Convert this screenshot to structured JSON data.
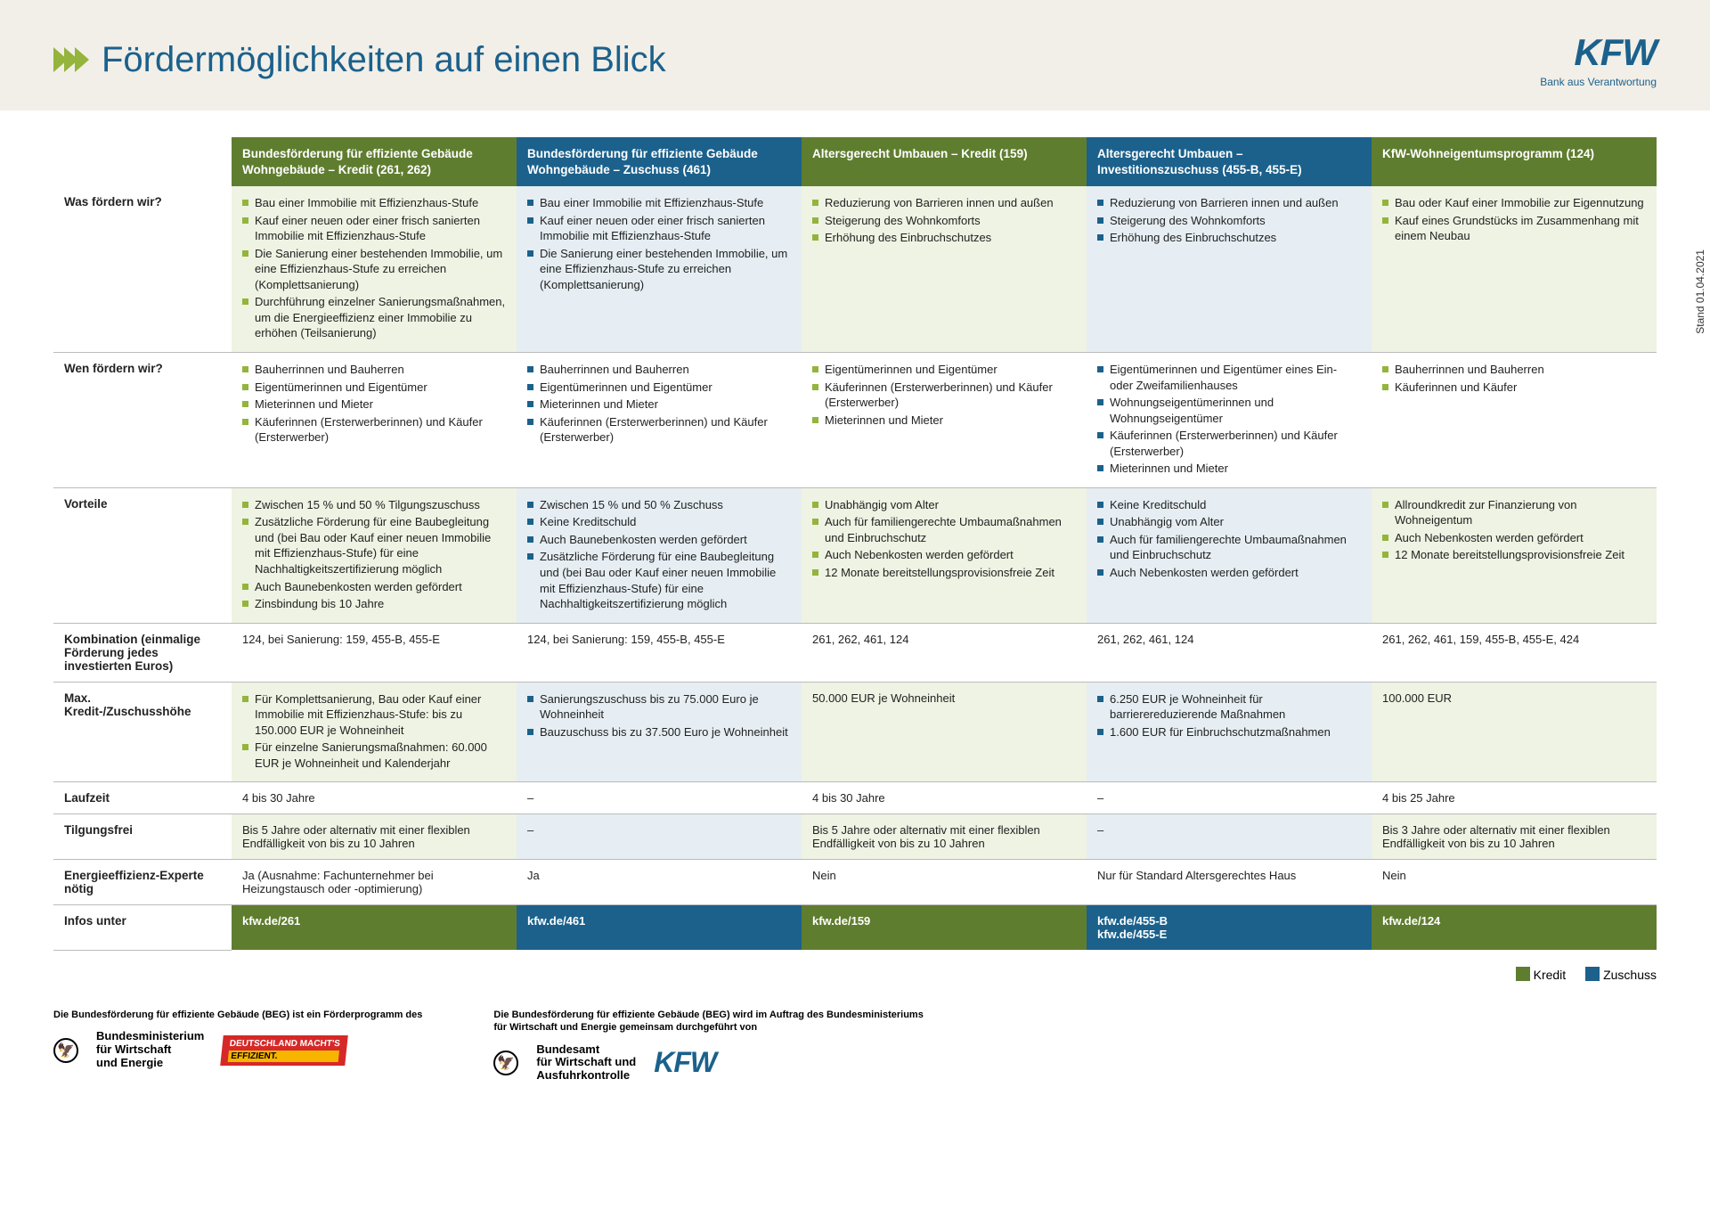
{
  "header": {
    "title": "Fördermöglichkeiten auf einen Blick",
    "logo": "KFW",
    "logo_sub": "Bank aus Verantwortung",
    "stand": "Stand 01.04.2021"
  },
  "columns": [
    {
      "title": "Bundesförderung für effiziente Gebäude Wohngebäude – Kredit (261, 262)",
      "type": "green"
    },
    {
      "title": "Bundesförderung für effiziente Gebäude Wohngebäude – Zuschuss (461)",
      "type": "blue"
    },
    {
      "title": "Altersgerecht Umbauen – Kredit (159)",
      "type": "green"
    },
    {
      "title": "Altersgerecht Umbauen – Investitionszuschuss (455-B, 455-E)",
      "type": "blue"
    },
    {
      "title": "KfW-Wohneigentumsprogramm (124)",
      "type": "green"
    }
  ],
  "rows": [
    {
      "label": "Was fördern wir?",
      "tint": "A",
      "cells": [
        [
          "Bau einer Immobilie mit Effizienzhaus-Stufe",
          "Kauf einer neuen oder einer frisch sanierten Immobilie mit Effizienzhaus-Stufe",
          "Die Sanierung einer bestehenden Immobilie, um eine Effizienzhaus-Stufe zu erreichen (Komplettsanierung)",
          "Durchführung einzelner Sanierungsmaßnahmen, um die Energieeffizienz einer Immobilie zu erhöhen (Teilsanierung)"
        ],
        [
          "Bau einer Immobilie mit Effizienzhaus-Stufe",
          "Kauf einer neuen oder einer frisch sanierten Immobilie mit Effizienzhaus-Stufe",
          "Die Sanierung einer bestehenden Immobilie, um eine Effizienzhaus-Stufe zu erreichen (Komplettsanierung)"
        ],
        [
          "Reduzierung von Barrieren innen und außen",
          "Steigerung des Wohnkomforts",
          "Erhöhung des Einbruchschutzes"
        ],
        [
          "Reduzierung von Barrieren innen und außen",
          "Steigerung des Wohnkomforts",
          "Erhöhung des Einbruchschutzes"
        ],
        [
          "Bau oder Kauf einer Immobilie zur Eigennutzung",
          "Kauf eines Grundstücks im Zusammenhang mit einem Neubau"
        ]
      ]
    },
    {
      "label": "Wen fördern wir?",
      "tint": "B",
      "cells": [
        [
          "Bauherrinnen und Bauherren",
          "Eigentümerinnen und Eigentümer",
          "Mieterinnen und Mieter",
          "Käuferinnen (Ersterwerberinnen) und Käufer (Ersterwerber)"
        ],
        [
          "Bauherrinnen und Bauherren",
          "Eigentümerinnen und Eigentümer",
          "Mieterinnen und Mieter",
          "Käuferinnen (Ersterwerberinnen) und Käufer (Ersterwerber)"
        ],
        [
          "Eigentümerinnen und Eigentümer",
          "Käuferinnen (Ersterwerberinnen) und Käufer (Ersterwerber)",
          "Mieterinnen und Mieter"
        ],
        [
          "Eigentümerinnen und Eigentümer eines Ein- oder Zweifamilienhauses",
          "Wohnungseigentümerinnen und Wohnungseigentümer",
          "Käuferinnen (Ersterwerberinnen) und Käufer (Ersterwerber)",
          "Mieterinnen und Mieter"
        ],
        [
          "Bauherrinnen und Bauherren",
          "Käuferinnen und Käufer"
        ]
      ]
    },
    {
      "label": "Vorteile",
      "tint": "A",
      "cells": [
        [
          "Zwischen 15 % und 50 % Tilgungszuschuss",
          "Zusätzliche Förderung für eine Baubegleitung und (bei Bau oder Kauf einer neuen Immobilie mit Effizienzhaus-Stufe) für eine Nachhaltigkeitszertifizierung möglich",
          "Auch Baunebenkosten werden gefördert",
          "Zinsbindung bis 10 Jahre"
        ],
        [
          "Zwischen 15 % und 50 % Zuschuss",
          "Keine Kreditschuld",
          "Auch Baunebenkosten werden gefördert",
          "Zusätzliche Förderung für eine Baubegleitung und (bei Bau oder Kauf einer neuen Immobilie mit Effizienzhaus-Stufe) für eine Nachhaltigkeitszertifizierung möglich"
        ],
        [
          "Unabhängig vom Alter",
          "Auch für familiengerechte Umbaumaßnahmen und Einbruchschutz",
          "Auch Nebenkosten werden gefördert",
          "12 Monate bereitstellungsprovisionsfreie Zeit"
        ],
        [
          "Keine Kreditschuld",
          "Unabhängig vom Alter",
          "Auch für familiengerechte Umbaumaßnahmen und Einbruchschutz",
          "Auch Nebenkosten werden gefördert"
        ],
        [
          "Allroundkredit zur Finanzierung von Wohneigentum",
          "Auch Nebenkosten werden gefördert",
          "12 Monate bereitstellungsprovisionsfreie Zeit"
        ]
      ]
    },
    {
      "label": "Kombination (einmalige Förderung jedes investierten Euros)",
      "tint": "B",
      "cells": [
        "124, bei Sanierung: 159, 455-B, 455-E",
        "124, bei Sanierung: 159, 455-B, 455-E",
        "261, 262, 461, 124",
        "261, 262, 461, 124",
        "261, 262, 461, 159, 455-B, 455-E, 424"
      ]
    },
    {
      "label": "Max. Kredit-/Zuschusshöhe",
      "tint": "A",
      "cells": [
        [
          "Für Komplettsanierung, Bau oder Kauf einer Immobilie mit Effizienzhaus-Stufe: bis zu 150.000 EUR je Wohneinheit",
          "Für einzelne Sanierungsmaßnahmen: 60.000 EUR je Wohneinheit und Kalenderjahr"
        ],
        [
          "Sanierungszuschuss bis zu 75.000 Euro je Wohneinheit",
          "Bauzuschuss bis zu 37.500 Euro je Wohneinheit"
        ],
        "50.000 EUR je Wohneinheit",
        [
          "6.250 EUR je Wohneinheit für barrierereduzierende Maßnahmen",
          "1.600 EUR für Einbruchschutzmaßnahmen"
        ],
        "100.000 EUR"
      ]
    },
    {
      "label": "Laufzeit",
      "tint": "B",
      "cells": [
        "4 bis 30 Jahre",
        "–",
        "4 bis 30 Jahre",
        "–",
        "4 bis 25 Jahre"
      ]
    },
    {
      "label": "Tilgungsfrei",
      "tint": "A",
      "cells": [
        "Bis 5 Jahre oder alternativ mit einer flexiblen Endfälligkeit von bis zu 10 Jahren",
        "–",
        "Bis 5 Jahre oder alternativ mit einer flexiblen Endfälligkeit von bis zu 10 Jahren",
        "–",
        "Bis 3 Jahre oder alternativ mit einer flexiblen Endfälligkeit von bis zu 10 Jahren"
      ]
    },
    {
      "label": "Energieeffizienz-Experte nötig",
      "tint": "B",
      "cells": [
        "Ja (Ausnahme: Fachunternehmer bei Heizungstausch oder -optimierung)",
        "Ja",
        "Nein",
        "Nur für Standard Altersgerechtes Haus",
        "Nein"
      ]
    }
  ],
  "footer_row": {
    "label": "Infos unter",
    "cells": [
      "kfw.de/261",
      "kfw.de/461",
      "kfw.de/159",
      "kfw.de/455-B\nkfw.de/455-E",
      "kfw.de/124"
    ]
  },
  "legend": {
    "kredit": "Kredit",
    "zuschuss": "Zuschuss"
  },
  "footnotes": {
    "left_cap": "Die Bundesförderung für effiziente Gebäude (BEG) ist ein Förderprogramm des",
    "left_ministry": "Bundesministerium\nfür Wirtschaft\nund Energie",
    "badge_top": "DEUTSCHLAND",
    "badge_mid": "MACHT'S",
    "badge_bot": "EFFIZIENT.",
    "right_cap": "Die Bundesförderung für effiziente Gebäude (BEG) wird im Auftrag des Bundesministeriums für Wirtschaft und Energie gemeinsam durchgeführt von",
    "right_ministry": "Bundesamt\nfür Wirtschaft und\nAusfuhrkontrolle",
    "kfw": "KFW"
  }
}
